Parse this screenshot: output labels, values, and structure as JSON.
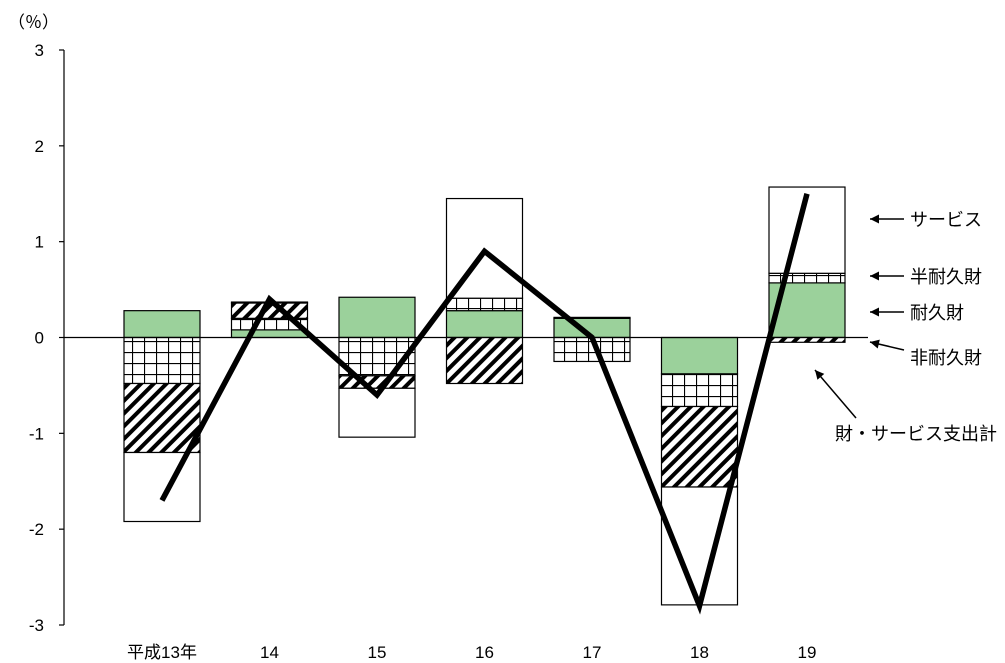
{
  "chart_data": {
    "type": "bar",
    "stacked": true,
    "unit_label": "（％）",
    "categories": [
      "平成13年",
      "14",
      "15",
      "16",
      "17",
      "18",
      "19"
    ],
    "ylim": [
      -3,
      3
    ],
    "yticks": [
      3,
      2,
      1,
      0,
      -1,
      -2,
      -3
    ],
    "ytick_labels": [
      "3",
      "2",
      "1",
      "0",
      "-1",
      "-2",
      "-3"
    ],
    "series": [
      {
        "name": "耐久財",
        "key": "durable",
        "fill": "#9bd19b",
        "values": [
          0.28,
          0.08,
          0.42,
          0.28,
          0.2,
          -0.38,
          0.57
        ]
      },
      {
        "name": "半耐久財",
        "key": "semi_durable",
        "fill": "grid",
        "values": [
          -0.48,
          0.12,
          -0.4,
          0.13,
          -0.25,
          -0.34,
          0.1
        ]
      },
      {
        "name": "非耐久財",
        "key": "non_durable",
        "fill": "hatch",
        "values": [
          -0.72,
          0.16,
          -0.13,
          -0.48,
          0.0,
          -0.84,
          -0.05
        ]
      },
      {
        "name": "サービス",
        "key": "services",
        "fill": "none",
        "values": [
          -0.72,
          0.01,
          -0.51,
          1.04,
          0.01,
          -1.23,
          0.9
        ]
      }
    ],
    "line": {
      "name": "財・サービス支出計",
      "values": [
        -1.7,
        0.4,
        -0.6,
        0.9,
        0.0,
        -2.8,
        1.5
      ]
    },
    "legend_annotations": [
      "サービス",
      "半耐久財",
      "耐久財",
      "非耐久財",
      "財・サービス支出計"
    ],
    "grid": false,
    "legend": "right",
    "colors": {
      "durable": "#9bd19b",
      "line": "#000000",
      "axis": "#000000"
    }
  }
}
